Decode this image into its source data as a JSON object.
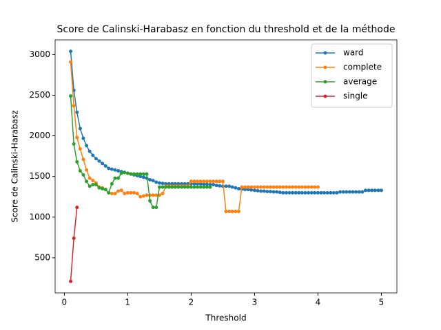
{
  "chart_data": {
    "type": "line",
    "title": "Score de Calinski-Harabasz en fonction du threshold et de la méthode",
    "xlabel": "Threshold",
    "ylabel": "Score de Calinski-Harabasz",
    "x": [
      0.1,
      0.15,
      0.2,
      0.25,
      0.3,
      0.35,
      0.4,
      0.45,
      0.5,
      0.55,
      0.6,
      0.65,
      0.7,
      0.75,
      0.8,
      0.85,
      0.9,
      0.95,
      1.0,
      1.05,
      1.1,
      1.15,
      1.2,
      1.25,
      1.3,
      1.35,
      1.4,
      1.45,
      1.5,
      1.55,
      1.6,
      1.65,
      1.7,
      1.75,
      1.8,
      1.85,
      1.9,
      1.95,
      2.0,
      2.05,
      2.1,
      2.15,
      2.2,
      2.25,
      2.3,
      2.35,
      2.4,
      2.45,
      2.5,
      2.55,
      2.6,
      2.65,
      2.7,
      2.75,
      2.8,
      2.85,
      2.9,
      2.95,
      3.0,
      3.05,
      3.1,
      3.15,
      3.2,
      3.25,
      3.3,
      3.35,
      3.4,
      3.45,
      3.5,
      3.55,
      3.6,
      3.65,
      3.7,
      3.75,
      3.8,
      3.85,
      3.9,
      3.95,
      4.0,
      4.05,
      4.1,
      4.15,
      4.2,
      4.25,
      4.3,
      4.35,
      4.4,
      4.45,
      4.5,
      4.55,
      4.6,
      4.65,
      4.7,
      4.75,
      4.8,
      4.85,
      4.9,
      4.95,
      5.0
    ],
    "series": [
      {
        "name": "ward",
        "color": "#1f77b4",
        "values": [
          3040,
          2560,
          2290,
          2090,
          1970,
          1880,
          1810,
          1760,
          1720,
          1690,
          1660,
          1630,
          1600,
          1590,
          1580,
          1570,
          1560,
          1550,
          1540,
          1530,
          1520,
          1510,
          1500,
          1490,
          1480,
          1460,
          1450,
          1430,
          1420,
          1415,
          1410,
          1410,
          1410,
          1410,
          1410,
          1410,
          1410,
          1410,
          1410,
          1410,
          1410,
          1410,
          1405,
          1405,
          1400,
          1400,
          1390,
          1385,
          1380,
          1380,
          1380,
          1370,
          1360,
          1350,
          1345,
          1340,
          1340,
          1335,
          1330,
          1325,
          1320,
          1320,
          1315,
          1315,
          1310,
          1310,
          1305,
          1300,
          1300,
          1300,
          1300,
          1300,
          1300,
          1300,
          1300,
          1300,
          1300,
          1300,
          1300,
          1300,
          1300,
          1300,
          1300,
          1300,
          1300,
          1310,
          1310,
          1310,
          1310,
          1310,
          1310,
          1310,
          1310,
          1330,
          1330,
          1330,
          1330,
          1330,
          1330
        ]
      },
      {
        "name": "complete",
        "color": "#ff7f0e",
        "values": [
          2910,
          2370,
          1980,
          1840,
          1710,
          1580,
          1480,
          1450,
          1420,
          1370,
          1360,
          1340,
          1300,
          1290,
          1290,
          1320,
          1330,
          1290,
          1300,
          1300,
          1300,
          1290,
          1250,
          1260,
          1270,
          1270,
          1270,
          1270,
          1270,
          1290,
          1380,
          1380,
          1380,
          1380,
          1380,
          1380,
          1380,
          1380,
          1440,
          1440,
          1440,
          1440,
          1440,
          1440,
          1440,
          1440,
          1440,
          1440,
          1440,
          1070,
          1070,
          1070,
          1070,
          1070,
          1370,
          1370,
          1370,
          1370,
          1370,
          1370,
          1370,
          1370,
          1370,
          1370,
          1370,
          1370,
          1370,
          1370,
          1370,
          1370,
          1370,
          1370,
          1370,
          1370,
          1370,
          1370,
          1370,
          1370,
          1370,
          null,
          null,
          null,
          null,
          null,
          null,
          null,
          null,
          null,
          null,
          null,
          null,
          null,
          null,
          null,
          null,
          null,
          null,
          null,
          null
        ]
      },
      {
        "name": "average",
        "color": "#2ca02c",
        "values": [
          2490,
          1900,
          1680,
          1570,
          1520,
          1440,
          1380,
          1400,
          1400,
          1360,
          1350,
          1340,
          1300,
          1410,
          1480,
          1480,
          1540,
          1550,
          1540,
          1530,
          1530,
          1530,
          1530,
          1530,
          1530,
          1200,
          1120,
          1120,
          1370,
          1370,
          1370,
          1370,
          1370,
          1370,
          1370,
          1370,
          1370,
          1370,
          1370,
          1370,
          1370,
          1370,
          1370,
          1370,
          1370,
          null,
          null,
          null,
          null,
          null,
          null,
          null,
          null,
          null,
          null,
          null,
          null,
          null,
          null,
          null,
          null,
          null,
          null,
          null,
          null,
          null,
          null,
          null,
          null,
          null,
          null,
          null,
          null,
          null,
          null,
          null,
          null,
          null,
          null,
          null,
          null,
          null,
          null,
          null,
          null,
          null,
          null,
          null,
          null,
          null,
          null,
          null,
          null,
          null,
          null,
          null,
          null,
          null,
          null
        ]
      },
      {
        "name": "single",
        "color": "#d62728",
        "values": [
          210,
          740,
          1120,
          null,
          null,
          null,
          null,
          null,
          null,
          null,
          null,
          null,
          null,
          null,
          null,
          null,
          null,
          null,
          null,
          null,
          null,
          null,
          null,
          null,
          null,
          null,
          null,
          null,
          null,
          null,
          null,
          null,
          null,
          null,
          null,
          null,
          null,
          null,
          null,
          null,
          null,
          null,
          null,
          null,
          null,
          null,
          null,
          null,
          null,
          null,
          null,
          null,
          null,
          null,
          null,
          null,
          null,
          null,
          null,
          null,
          null,
          null,
          null,
          null,
          null,
          null,
          null,
          null,
          null,
          null,
          null,
          null,
          null,
          null,
          null,
          null,
          null,
          null,
          null,
          null,
          null,
          null,
          null,
          null,
          null,
          null,
          null,
          null,
          null,
          null,
          null,
          null,
          null,
          null,
          null,
          null,
          null,
          null,
          null
        ]
      }
    ],
    "xlim": [
      -0.145,
      5.245
    ],
    "ylim": [
      68,
      3181
    ],
    "xticks": [
      0,
      1,
      2,
      3,
      4,
      5
    ],
    "yticks": [
      500,
      1000,
      1500,
      2000,
      2500,
      3000
    ],
    "legend": "upper right",
    "grid": false
  }
}
